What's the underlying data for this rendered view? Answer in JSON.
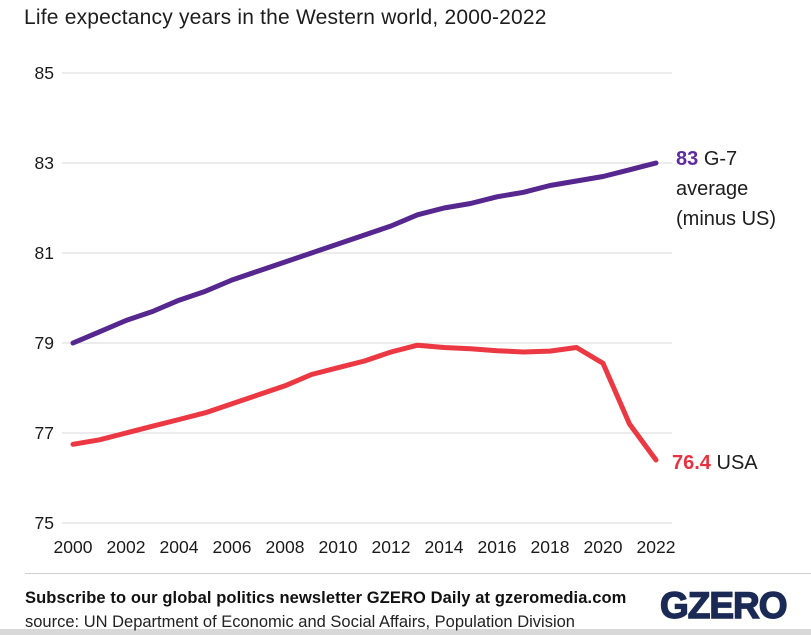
{
  "title": "Life expectancy years in the Western world, 2000-2022",
  "chart_data": {
    "type": "line",
    "title": "Life expectancy years in the Western world, 2000-2022",
    "x": [
      2000,
      2001,
      2002,
      2003,
      2004,
      2005,
      2006,
      2007,
      2008,
      2009,
      2010,
      2011,
      2012,
      2013,
      2014,
      2015,
      2016,
      2017,
      2018,
      2019,
      2020,
      2021,
      2022
    ],
    "series": [
      {
        "name": "G-7 average (minus US)",
        "color": "#55278f",
        "end_label": "83",
        "values": [
          79.0,
          79.25,
          79.5,
          79.7,
          79.95,
          80.15,
          80.4,
          80.6,
          80.8,
          81.0,
          81.2,
          81.4,
          81.6,
          81.85,
          82.0,
          82.1,
          82.25,
          82.35,
          82.5,
          82.6,
          82.7,
          82.85,
          83.0
        ]
      },
      {
        "name": "USA",
        "color": "#ec3842",
        "end_label": "76.4",
        "values": [
          76.75,
          76.85,
          77.0,
          77.15,
          77.3,
          77.45,
          77.65,
          77.85,
          78.05,
          78.3,
          78.45,
          78.6,
          78.8,
          78.95,
          78.9,
          78.87,
          78.83,
          78.8,
          78.82,
          78.9,
          78.55,
          77.2,
          76.4
        ]
      }
    ],
    "xticks": [
      2000,
      2002,
      2004,
      2006,
      2008,
      2010,
      2012,
      2014,
      2016,
      2018,
      2020,
      2022
    ],
    "yticks": [
      75,
      77,
      79,
      81,
      83,
      85
    ],
    "ylim": [
      75,
      85
    ],
    "xlabel": "",
    "ylabel": "",
    "grid": "horizontal",
    "legend_position": "inline-end-labels"
  },
  "annotations": {
    "g7_value": "83",
    "g7_line1": "G-7",
    "g7_line2": "average",
    "g7_line3": "(minus US)",
    "usa_value": "76.4",
    "usa_label": "USA"
  },
  "footer": {
    "subscribe": "Subscribe to our global politics newsletter GZERO Daily at gzeromedia.com",
    "source": "source: UN Department of Economic and Social Affairs, Population Division",
    "logo_text": "GZERO"
  },
  "colors": {
    "g7_line": "#55278f",
    "usa_line": "#ec3842",
    "g7_value_text": "#5e2ba0",
    "usa_value_text": "#e8323f",
    "gridline": "#d9d9d9",
    "tick_text": "#1a1a1a",
    "body_text": "#1d1d1d",
    "logo_navy": "#1b2a55",
    "bottom_bar": "#d8d8d8"
  }
}
